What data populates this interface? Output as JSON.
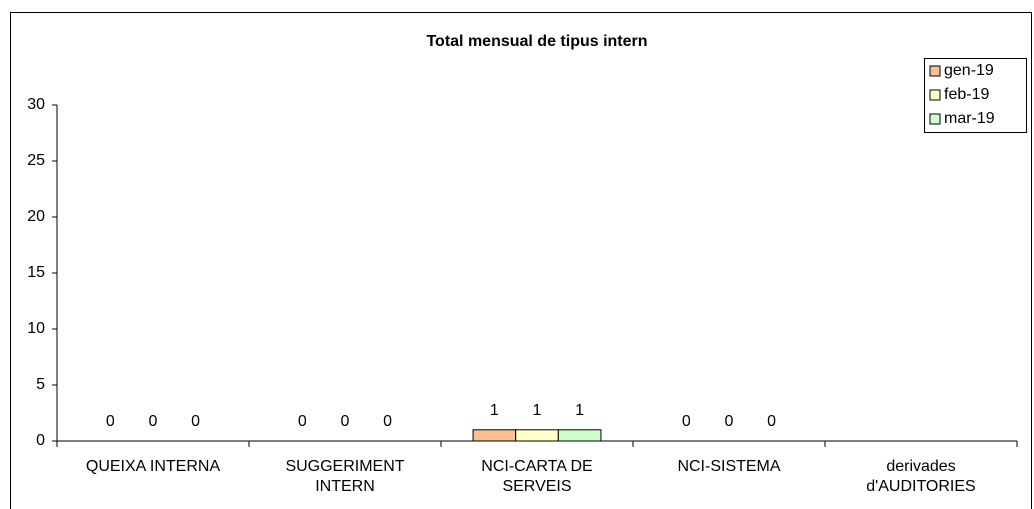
{
  "chart_data": {
    "type": "bar",
    "title": "Total mensual de tipus intern",
    "categories": [
      "QUEIXA INTERNA",
      "SUGGERIMENT INTERN",
      "NCI-CARTA DE SERVEIS",
      "NCI-SISTEMA",
      "derivades d'AUDITORIES"
    ],
    "series": [
      {
        "name": "gen-19",
        "color": "#FAC090",
        "values": [
          0,
          0,
          1,
          0,
          null
        ]
      },
      {
        "name": "feb-19",
        "color": "#FFFFCC",
        "values": [
          0,
          0,
          1,
          0,
          null
        ]
      },
      {
        "name": "mar-19",
        "color": "#CCFFCC",
        "values": [
          0,
          0,
          1,
          0,
          null
        ]
      }
    ],
    "ylim": [
      0,
      30
    ],
    "yticks": [
      0,
      5,
      10,
      15,
      20,
      25,
      30
    ],
    "grid": false,
    "legend": "top-right"
  }
}
